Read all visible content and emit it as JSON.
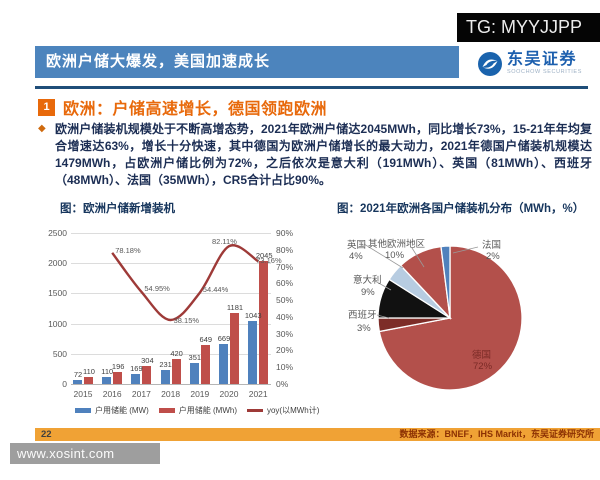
{
  "overlay": {
    "tg_badge": "TG: MYYJJPP",
    "watermark": "www.xosint.com"
  },
  "header": {
    "title": "欧洲户储大爆发，美国加速成长",
    "brand_name": "东吴证券",
    "brand_sub": "SOOCHOW SECURITIES"
  },
  "section": {
    "num": "1",
    "title": "欧洲：户储高速增长，德国领跑欧洲"
  },
  "body": {
    "text": "欧洲户储装机规模处于不断高增态势，2021年欧洲户储达2045MWh，同比增长73%，15-21年年均复合增速达63%，增长十分快速，其中德国为欧洲户储增长的最大动力，2021年德国户储装机规模达1479MWh，占欧洲户储比例为72%，之后依次是意大利（191MWh）、英国（81MWh）、西班牙（48MWh）、法国（35MWh），CR5合计占比90%。"
  },
  "footer": {
    "page": "22",
    "source": "数据来源：BNEF，IHS Markit，东吴证券研究所"
  },
  "chart_data": [
    {
      "type": "bar",
      "title": "图：欧洲户储新增装机",
      "categories": [
        "2015",
        "2016",
        "2017",
        "2018",
        "2019",
        "2020",
        "2021"
      ],
      "series": [
        {
          "name": "户用储能 (MW)",
          "kind": "bar",
          "color": "#4f81bd",
          "values": [
            72,
            110,
            169,
            231,
            351,
            669,
            1043
          ]
        },
        {
          "name": "户用储能 (MWh)",
          "kind": "bar",
          "color": "#bf4e4a",
          "values": [
            110,
            196,
            304,
            420,
            649,
            1181,
            2045
          ]
        },
        {
          "name": "yoy(以MWh计)",
          "kind": "line",
          "color": "#9e3a38",
          "values": [
            null,
            78.18,
            54.95,
            38.15,
            54.44,
            82.11,
            73.16
          ],
          "labels": [
            "",
            "78.18%",
            "54.95%",
            "38.15%",
            "54.44%",
            "82.11%",
            "73.16%"
          ]
        }
      ],
      "y_left": {
        "ticks": [
          2500,
          2000,
          1500,
          1000,
          500,
          0
        ],
        "max": 2500
      },
      "y_right": {
        "ticks": [
          "90%",
          "80%",
          "70%",
          "60%",
          "50%",
          "40%",
          "30%",
          "20%",
          "10%",
          "0%"
        ],
        "max": 90
      },
      "grid": true,
      "legend_position": "bottom"
    },
    {
      "type": "pie",
      "title": "图：2021年欧洲各国户储装机分布（MWh，%）",
      "slices": [
        {
          "name": "德国",
          "pct": 72,
          "label": "72%",
          "color": "#b3504b",
          "label_color": "#7a2a26"
        },
        {
          "name": "西班牙",
          "pct": 3,
          "label": "3%",
          "color": "#7d2d28",
          "label_color": "#595959"
        },
        {
          "name": "意大利",
          "pct": 9,
          "label": "9%",
          "color": "#111111",
          "label_color": "#595959"
        },
        {
          "name": "英国",
          "pct": 4,
          "label": "4%",
          "color": "#b7cce1",
          "label_color": "#595959"
        },
        {
          "name": "其他欧洲地区",
          "pct": 10,
          "label": "10%",
          "color": "#b3504b",
          "label_color": "#595959"
        },
        {
          "name": "法国",
          "pct": 2,
          "label": "2%",
          "color": "#5081bc",
          "label_color": "#595959"
        }
      ]
    }
  ]
}
